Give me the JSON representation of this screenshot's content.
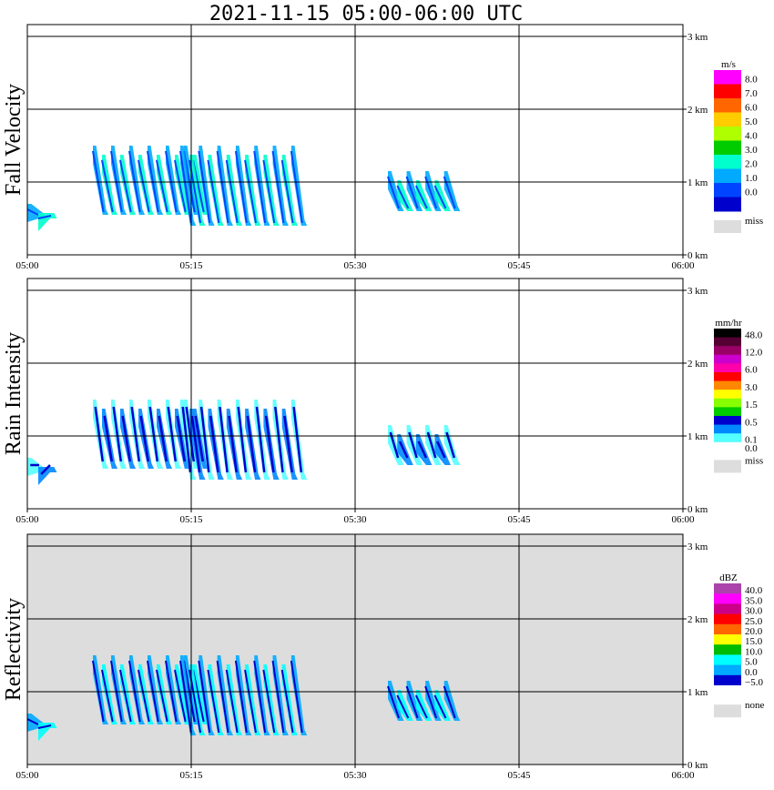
{
  "title": "2021-11-15   05:00-06:00 UTC",
  "chart_data": [
    {
      "type": "heatmap",
      "title": "2021-11-15   05:00-06:00 UTC",
      "ylabel": "Fall Velocity",
      "xticks": [
        "05:00",
        "05:15",
        "05:30",
        "05:45",
        "06:00"
      ],
      "yticks": [
        "0 km",
        "1 km",
        "2 km",
        "3 km"
      ],
      "xlim": [
        "05:00",
        "06:00"
      ],
      "ylim_km": [
        0,
        3.2
      ],
      "grid": true,
      "background": "#ffffff",
      "colorbar": {
        "unit": "m/s",
        "labels": [
          "8.0",
          "7.0",
          "6.0",
          "5.0",
          "4.0",
          "3.0",
          "2.0",
          "1.0",
          "0.0"
        ],
        "colors": [
          "#ff00ff",
          "#ff0000",
          "#ff6600",
          "#ffcc00",
          "#b0ff00",
          "#00cc00",
          "#00ffcc",
          "#00aaff",
          "#0044ff",
          "#0000cc"
        ],
        "missing_label": "miss",
        "missing_color": "#dddddd"
      },
      "echoes": [
        {
          "t_start": "05:00",
          "t_end": "05:02",
          "h_km": [
            0.5,
            0.7
          ],
          "value": "1.0-2.0"
        },
        {
          "t_start": "05:06",
          "t_end": "05:16",
          "h_km": [
            0.55,
            1.5
          ],
          "value": "1.0-2.0"
        },
        {
          "t_start": "05:14",
          "t_end": "05:25",
          "h_km": [
            0.4,
            1.5
          ],
          "value": "1.0-3.0"
        },
        {
          "t_start": "05:33",
          "t_end": "05:39",
          "h_km": [
            0.6,
            1.15
          ],
          "value": "1.0-2.0"
        }
      ]
    },
    {
      "type": "heatmap",
      "ylabel": "Rain Intensity",
      "xticks": [
        "05:00",
        "05:15",
        "05:30",
        "05:45",
        "06:00"
      ],
      "yticks": [
        "0 km",
        "1 km",
        "2 km",
        "3 km"
      ],
      "xlim": [
        "05:00",
        "06:00"
      ],
      "ylim_km": [
        0,
        3.2
      ],
      "grid": true,
      "background": "#ffffff",
      "colorbar": {
        "unit": "mm/hr",
        "labels": [
          "48.0",
          "12.0",
          "6.0",
          "3.0",
          "1.5",
          "0.5",
          "0.1",
          "0.0"
        ],
        "label_rows": [
          0,
          2,
          4,
          6,
          8,
          10,
          12,
          13
        ],
        "colors": [
          "#000000",
          "#550033",
          "#990066",
          "#cc00cc",
          "#ff00aa",
          "#ff0000",
          "#ff8800",
          "#ffff00",
          "#88ff00",
          "#00cc00",
          "#0000cc",
          "#0088ff",
          "#55ffff",
          "#ffffff"
        ],
        "missing_label": "miss",
        "missing_color": "#dddddd"
      },
      "echoes": [
        {
          "t_start": "05:00",
          "t_end": "05:02",
          "h_km": [
            0.5,
            0.7
          ],
          "value": "0.1-0.5"
        },
        {
          "t_start": "05:06",
          "t_end": "05:16",
          "h_km": [
            0.55,
            1.5
          ],
          "value": "0.1-0.5"
        },
        {
          "t_start": "05:14",
          "t_end": "05:25",
          "h_km": [
            0.4,
            1.5
          ],
          "value": "0.1-1.5"
        },
        {
          "t_start": "05:33",
          "t_end": "05:39",
          "h_km": [
            0.6,
            1.15
          ],
          "value": "0.1"
        }
      ]
    },
    {
      "type": "heatmap",
      "ylabel": "Reflectivity",
      "xticks": [
        "05:00",
        "05:15",
        "05:30",
        "05:45",
        "06:00"
      ],
      "yticks": [
        "0 km",
        "1 km",
        "2 km",
        "3 km"
      ],
      "xlim": [
        "05:00",
        "06:00"
      ],
      "ylim_km": [
        0,
        3.2
      ],
      "grid": true,
      "background": "#dddddd",
      "colorbar": {
        "unit": "dBZ",
        "labels": [
          "40.0",
          "35.0",
          "30.0",
          "25.0",
          "20.0",
          "15.0",
          "10.0",
          "5.0",
          "0.0",
          "−5.0"
        ],
        "colors": [
          "#aa44aa",
          "#ff00ff",
          "#cc0088",
          "#ff0000",
          "#ff6600",
          "#ffff00",
          "#00bb00",
          "#00ffff",
          "#00aaff",
          "#0000cc",
          "#ffffff"
        ],
        "missing_label": "none",
        "missing_color": "#dddddd"
      },
      "echoes": [
        {
          "t_start": "05:00",
          "t_end": "05:02",
          "h_km": [
            0.5,
            0.7
          ],
          "value": "0.0-10.0"
        },
        {
          "t_start": "05:06",
          "t_end": "05:16",
          "h_km": [
            0.55,
            1.5
          ],
          "value": "0.0-10.0"
        },
        {
          "t_start": "05:14",
          "t_end": "05:25",
          "h_km": [
            0.4,
            1.5
          ],
          "value": "0.0-15.0"
        },
        {
          "t_start": "05:33",
          "t_end": "05:39",
          "h_km": [
            0.6,
            1.15
          ],
          "value": "−5.0-5.0"
        }
      ]
    }
  ]
}
